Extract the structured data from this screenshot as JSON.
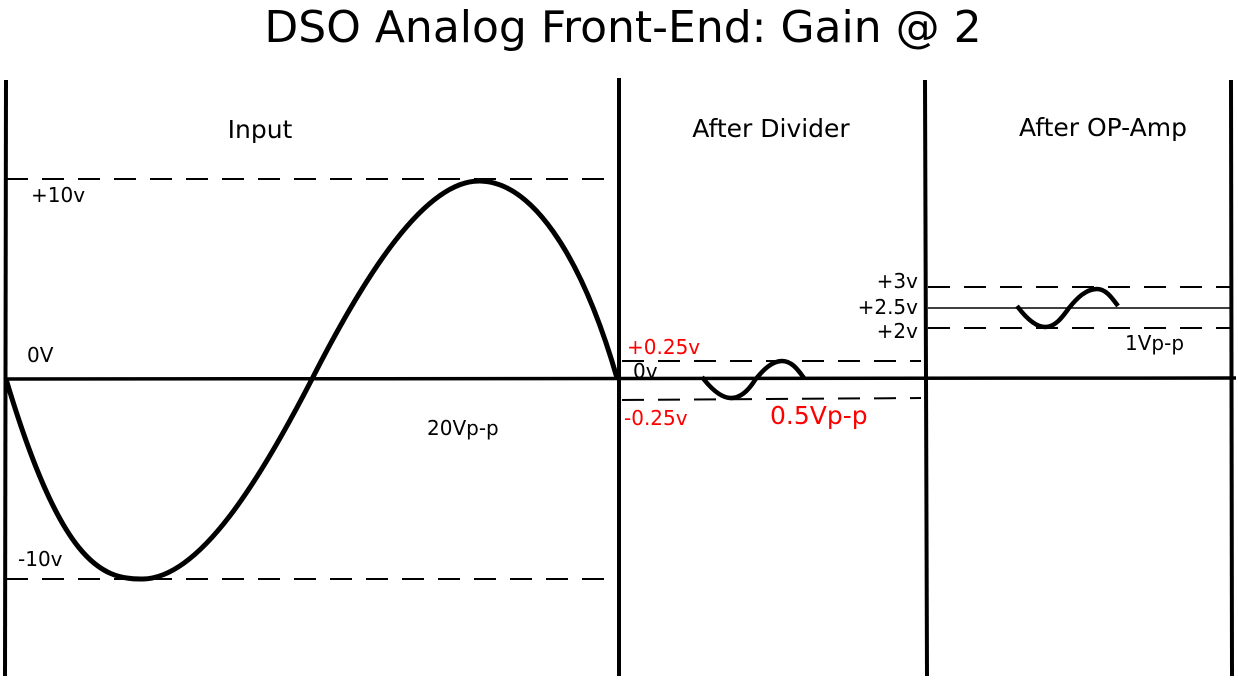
{
  "title": "DSO Analog Front-End: Gain @ 2",
  "sections": {
    "input": "Input",
    "divider": "After Divider",
    "opamp": "After OP-Amp"
  },
  "input_stage": {
    "pos_level": "+10v",
    "neg_level": "-10v",
    "zero_level": "0V",
    "vpp": "20Vp-p"
  },
  "divider_stage": {
    "pos_level": "+0.25v",
    "neg_level": "-0.25v",
    "zero_level": "0v",
    "vpp": "0.5Vp-p"
  },
  "opamp_stage": {
    "pos_level": "+3v",
    "mid_level": "+2.5v",
    "neg_level": "+2v",
    "vpp": "1Vp-p"
  },
  "colors": {
    "ink": "#000000",
    "highlight": "#ff0000"
  }
}
